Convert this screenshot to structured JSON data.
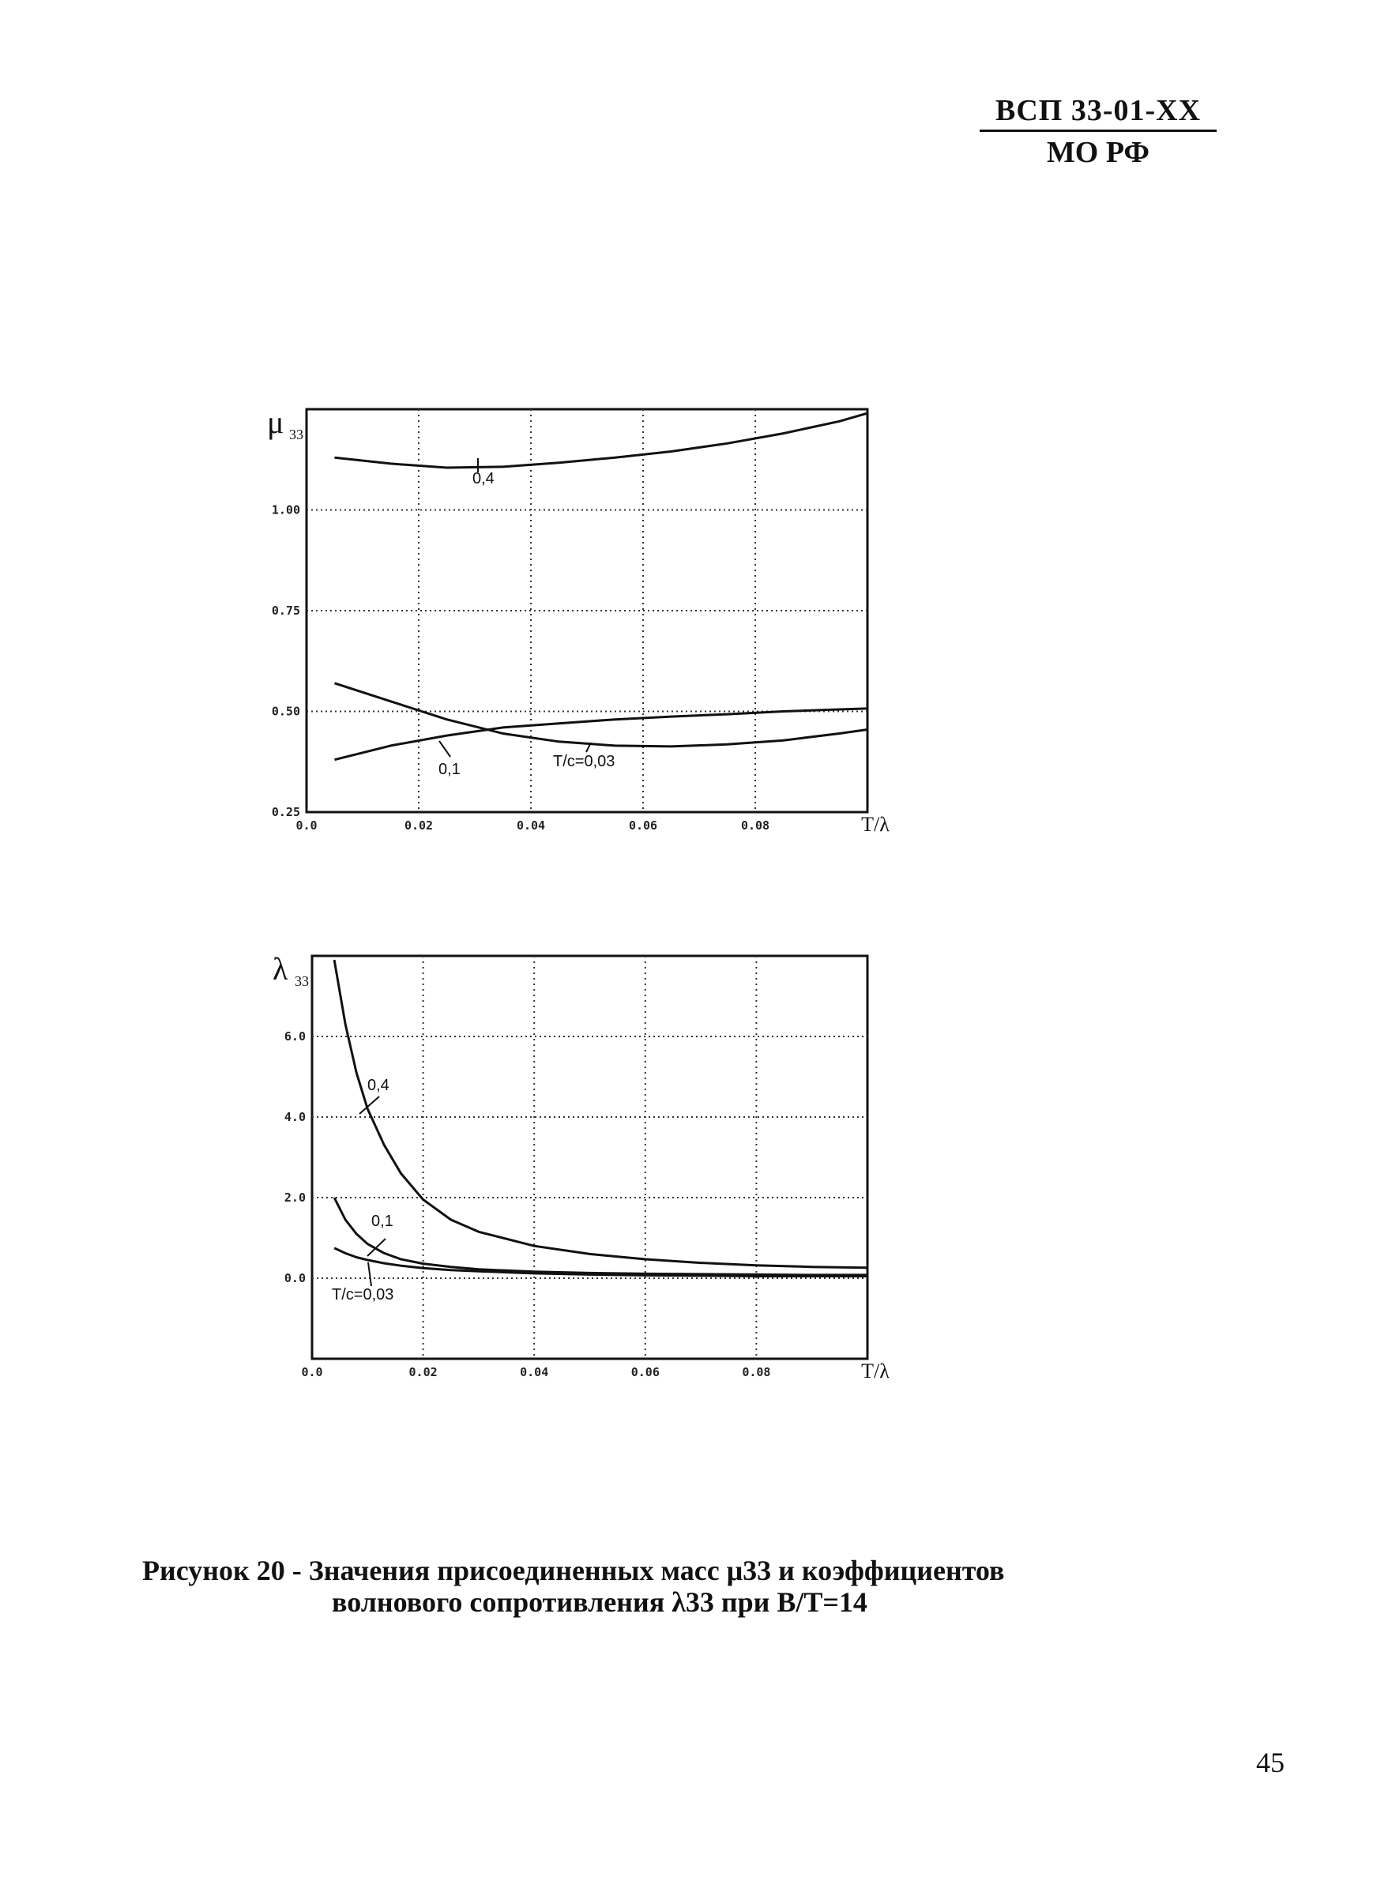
{
  "header": {
    "code": "ВСП 33-01-XX",
    "org": "МО РФ"
  },
  "chart_data": [
    {
      "type": "line",
      "ylabel": "μ",
      "ylabel_sub": "33",
      "xlabel": "T/λ",
      "xlim": [
        0.0,
        0.1
      ],
      "ylim": [
        0.25,
        1.25
      ],
      "xticks": [
        0.0,
        0.02,
        0.04,
        0.06,
        0.08
      ],
      "xtick_labels": [
        "0.0",
        "0.02",
        "0.04",
        "0.06",
        "0.08"
      ],
      "yticks": [
        0.25,
        0.5,
        0.75,
        1.0
      ],
      "ytick_labels": [
        "0.25",
        "0.50",
        "0.75",
        "1.00"
      ],
      "grid": true,
      "series": [
        {
          "name": "0,4",
          "x": [
            0.005,
            0.015,
            0.025,
            0.035,
            0.045,
            0.055,
            0.065,
            0.075,
            0.085,
            0.095,
            0.1
          ],
          "y": [
            1.13,
            1.115,
            1.105,
            1.107,
            1.117,
            1.13,
            1.145,
            1.165,
            1.19,
            1.22,
            1.24
          ]
        },
        {
          "name": "0,1",
          "x": [
            0.005,
            0.015,
            0.025,
            0.035,
            0.045,
            0.055,
            0.065,
            0.075,
            0.085,
            0.095,
            0.1
          ],
          "y": [
            0.38,
            0.415,
            0.44,
            0.46,
            0.47,
            0.48,
            0.487,
            0.493,
            0.5,
            0.505,
            0.507
          ]
        },
        {
          "name": "T/c=0,03",
          "x": [
            0.005,
            0.015,
            0.025,
            0.035,
            0.045,
            0.055,
            0.065,
            0.075,
            0.085,
            0.095,
            0.1
          ],
          "y": [
            0.57,
            0.525,
            0.48,
            0.445,
            0.425,
            0.415,
            0.413,
            0.418,
            0.428,
            0.445,
            0.455
          ]
        }
      ],
      "annotations": [
        "0,4",
        "0,1",
        "T/c=0,03"
      ]
    },
    {
      "type": "line",
      "ylabel": "λ",
      "ylabel_sub": "33",
      "xlabel": "T/λ",
      "xlim": [
        0.0,
        0.1
      ],
      "ylim": [
        -2.0,
        8.0
      ],
      "xticks": [
        0.0,
        0.02,
        0.04,
        0.06,
        0.08
      ],
      "xtick_labels": [
        "0.0",
        "0.02",
        "0.04",
        "0.06",
        "0.08"
      ],
      "yticks": [
        0.0,
        2.0,
        4.0,
        6.0
      ],
      "ytick_labels": [
        "0.0",
        "2.0",
        "4.0",
        "6.0"
      ],
      "grid": true,
      "series": [
        {
          "name": "0,4",
          "x": [
            0.004,
            0.006,
            0.008,
            0.01,
            0.013,
            0.016,
            0.02,
            0.025,
            0.03,
            0.04,
            0.05,
            0.06,
            0.07,
            0.08,
            0.09,
            0.1
          ],
          "y": [
            7.9,
            6.3,
            5.1,
            4.2,
            3.3,
            2.6,
            1.95,
            1.45,
            1.15,
            0.8,
            0.6,
            0.47,
            0.38,
            0.32,
            0.28,
            0.26
          ]
        },
        {
          "name": "0,1",
          "x": [
            0.004,
            0.006,
            0.008,
            0.01,
            0.013,
            0.016,
            0.02,
            0.025,
            0.03,
            0.04,
            0.05,
            0.06,
            0.07,
            0.08,
            0.09,
            0.1
          ],
          "y": [
            2.0,
            1.45,
            1.1,
            0.85,
            0.62,
            0.47,
            0.36,
            0.28,
            0.22,
            0.16,
            0.13,
            0.11,
            0.1,
            0.09,
            0.08,
            0.08
          ]
        },
        {
          "name": "T/c=0,03",
          "x": [
            0.004,
            0.006,
            0.008,
            0.01,
            0.013,
            0.016,
            0.02,
            0.025,
            0.03,
            0.04,
            0.05,
            0.06,
            0.07,
            0.08,
            0.09,
            0.1
          ],
          "y": [
            0.75,
            0.62,
            0.52,
            0.45,
            0.37,
            0.31,
            0.25,
            0.2,
            0.17,
            0.12,
            0.09,
            0.07,
            0.06,
            0.05,
            0.05,
            0.05
          ]
        }
      ],
      "annotations": [
        "0,4",
        "0,1",
        "T/c=0,03"
      ]
    }
  ],
  "caption": {
    "line1": "Рисунок 20 - Значения присоединенных масс μ33 и коэффициентов",
    "line2": "волнового сопротивления λ33 при B/T=14"
  },
  "page_number": "45"
}
